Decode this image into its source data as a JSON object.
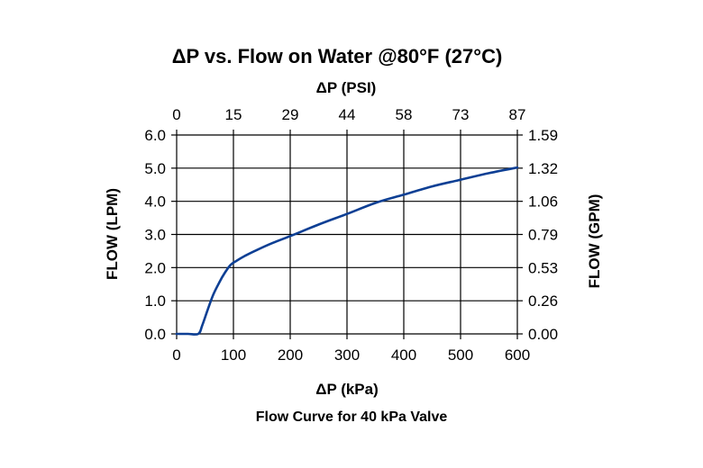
{
  "chart_data": {
    "type": "line",
    "title": "ΔP vs. Flow on Water @80°F (27°C)",
    "caption": "Flow Curve for 40 kPa Valve",
    "xlabel": "ΔP (kPa)",
    "x2label": "ΔP (PSI)",
    "ylabel": "FLOW (LPM)",
    "y2label": "FLOW (GPM)",
    "xlim": [
      0,
      600
    ],
    "ylim": [
      0,
      6
    ],
    "x_ticks": [
      "0",
      "100",
      "200",
      "300",
      "400",
      "500",
      "600"
    ],
    "x2_ticks": [
      "0",
      "15",
      "29",
      "44",
      "58",
      "73",
      "87"
    ],
    "y_ticks": [
      "0.0",
      "1.0",
      "2.0",
      "3.0",
      "4.0",
      "5.0",
      "6.0"
    ],
    "y2_ticks": [
      "0.00",
      "0.26",
      "0.53",
      "0.79",
      "1.06",
      "1.32",
      "1.59"
    ],
    "grid": true,
    "line_color": "#0d3f94",
    "series": [
      {
        "x": [
          0,
          20,
          38,
          45,
          55,
          65,
          75,
          85,
          95,
          105,
          120,
          140,
          170,
          200,
          250,
          300,
          350,
          400,
          450,
          500,
          550,
          600
        ],
        "y": [
          0,
          0,
          0,
          0.25,
          0.75,
          1.2,
          1.55,
          1.85,
          2.08,
          2.2,
          2.35,
          2.52,
          2.75,
          2.95,
          3.3,
          3.62,
          3.95,
          4.2,
          4.45,
          4.65,
          4.85,
          5.02
        ]
      }
    ]
  }
}
